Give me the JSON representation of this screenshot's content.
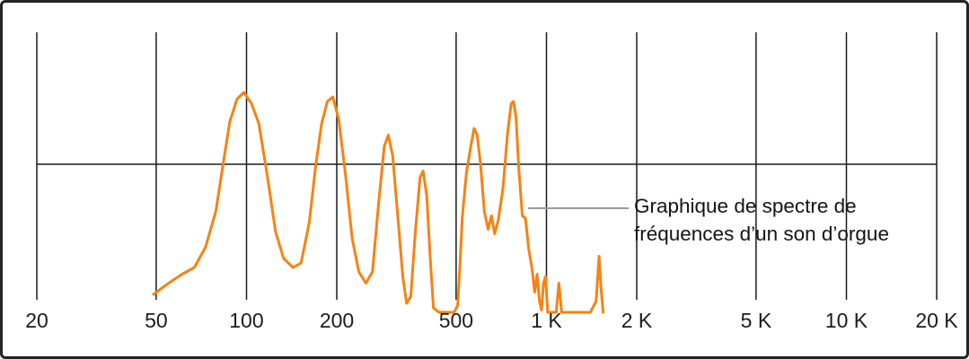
{
  "figure": {
    "background": "#ffffff",
    "border_color": "#242424"
  },
  "chart_data": {
    "type": "line",
    "title": "",
    "xlabel": "",
    "ylabel": "",
    "x_scale": "log",
    "x_range_hz": [
      20,
      20000
    ],
    "grid": true,
    "legend": "none",
    "grid_color": "#1a1a1a",
    "line_color": "#f78212",
    "x_ticks": [
      {
        "label": "20",
        "f": 20
      },
      {
        "label": "50",
        "f": 50
      },
      {
        "label": "100",
        "f": 100
      },
      {
        "label": "200",
        "f": 200
      },
      {
        "label": "500",
        "f": 500
      },
      {
        "label": "1 K",
        "f": 1000
      },
      {
        "label": "2 K",
        "f": 2000
      },
      {
        "label": "5 K",
        "f": 5000
      },
      {
        "label": "10 K",
        "f": 10000
      },
      {
        "label": "20 K",
        "f": 20000
      }
    ],
    "series": [
      {
        "name": "spectre de fréquences d'un son d'orgue",
        "points_hz_amp": [
          [
            49,
            0.08
          ],
          [
            55,
            0.13
          ],
          [
            61,
            0.17
          ],
          [
            67,
            0.2
          ],
          [
            73,
            0.29
          ],
          [
            79,
            0.45
          ],
          [
            84,
            0.68
          ],
          [
            88,
            0.85
          ],
          [
            93,
            0.95
          ],
          [
            98,
            0.98
          ],
          [
            104,
            0.93
          ],
          [
            110,
            0.84
          ],
          [
            117,
            0.62
          ],
          [
            125,
            0.36
          ],
          [
            133,
            0.24
          ],
          [
            143,
            0.2
          ],
          [
            152,
            0.22
          ],
          [
            162,
            0.4
          ],
          [
            170,
            0.65
          ],
          [
            178,
            0.84
          ],
          [
            186,
            0.94
          ],
          [
            194,
            0.96
          ],
          [
            203,
            0.86
          ],
          [
            214,
            0.61
          ],
          [
            225,
            0.33
          ],
          [
            237,
            0.18
          ],
          [
            250,
            0.13
          ],
          [
            263,
            0.18
          ],
          [
            276,
            0.49
          ],
          [
            288,
            0.74
          ],
          [
            297,
            0.79
          ],
          [
            307,
            0.7
          ],
          [
            319,
            0.44
          ],
          [
            332,
            0.16
          ],
          [
            342,
            0.04
          ],
          [
            353,
            0.07
          ],
          [
            366,
            0.37
          ],
          [
            379,
            0.6
          ],
          [
            388,
            0.63
          ],
          [
            399,
            0.52
          ],
          [
            410,
            0.24
          ],
          [
            420,
            0.02
          ],
          [
            438,
            0.0
          ],
          [
            492,
            0.0
          ],
          [
            506,
            0.03
          ],
          [
            514,
            0.19
          ],
          [
            524,
            0.42
          ],
          [
            541,
            0.62
          ],
          [
            558,
            0.73
          ],
          [
            574,
            0.82
          ],
          [
            588,
            0.79
          ],
          [
            603,
            0.66
          ],
          [
            621,
            0.45
          ],
          [
            639,
            0.37
          ],
          [
            656,
            0.43
          ],
          [
            672,
            0.35
          ],
          [
            691,
            0.41
          ],
          [
            716,
            0.55
          ],
          [
            741,
            0.79
          ],
          [
            763,
            0.93
          ],
          [
            776,
            0.94
          ],
          [
            792,
            0.87
          ],
          [
            809,
            0.64
          ],
          [
            831,
            0.43
          ],
          [
            851,
            0.42
          ],
          [
            873,
            0.28
          ],
          [
            894,
            0.2
          ],
          [
            914,
            0.09
          ],
          [
            931,
            0.17
          ],
          [
            948,
            0.05
          ],
          [
            963,
            0.01
          ],
          [
            978,
            0.13
          ],
          [
            993,
            0.16
          ],
          [
            1010,
            0.0
          ],
          [
            1078,
            0.0
          ],
          [
            1100,
            0.13
          ],
          [
            1124,
            0.0
          ],
          [
            1400,
            0.0
          ],
          [
            1465,
            0.05
          ],
          [
            1498,
            0.25
          ],
          [
            1518,
            0.12
          ],
          [
            1545,
            0.0
          ]
        ]
      }
    ],
    "annotation": {
      "lines": [
        "Graphique de spectre de",
        "fréquences d’un son d’orgue"
      ],
      "pointer_color": "#9b9b9b",
      "text_color": "#141414"
    }
  }
}
